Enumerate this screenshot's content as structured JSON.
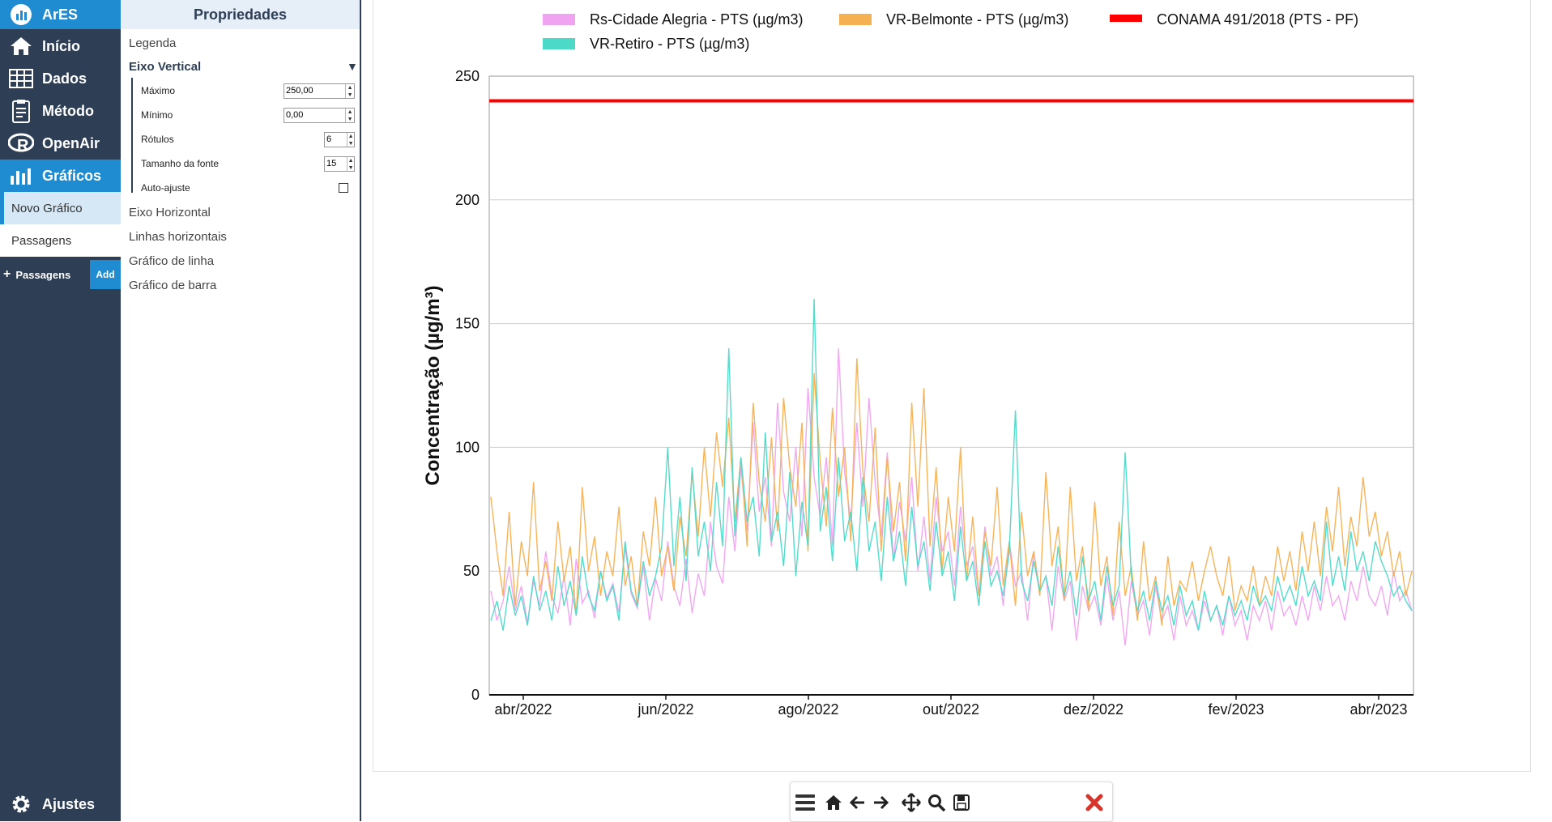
{
  "nav": {
    "brand": "ArES",
    "items": [
      {
        "label": "Início",
        "icon": "home-icon"
      },
      {
        "label": "Dados",
        "icon": "table-icon"
      },
      {
        "label": "Método",
        "icon": "clipboard-icon"
      },
      {
        "label": "OpenAir",
        "icon": "r-logo-icon"
      },
      {
        "label": "Gráficos",
        "icon": "bar-chart-icon"
      }
    ],
    "sub_items": [
      "Novo Gráfico",
      "Passagens"
    ],
    "add_label": "Passagens",
    "add_button": "Add",
    "settings": "Ajustes"
  },
  "props": {
    "title": "Propriedades",
    "legend": "Legenda",
    "vertical_axis": "Eixo Vertical",
    "fields": {
      "max_label": "Máximo",
      "max_value": "250,00",
      "min_label": "Mínimo",
      "min_value": "0,00",
      "labels_label": "Rótulos",
      "labels_value": "6",
      "font_label": "Tamanho da fonte",
      "font_value": "15",
      "autofit_label": "Auto-ajuste"
    },
    "sections": [
      "Eixo Horizontal",
      "Linhas horizontais",
      "Gráfico de linha",
      "Gráfico de barra"
    ]
  },
  "chart_data": {
    "type": "line",
    "ylabel": "Concentração (µg/m³)",
    "ylim": [
      0,
      250
    ],
    "yticks": [
      0,
      50,
      100,
      150,
      200,
      250
    ],
    "xticks": [
      "abr/2022",
      "jun/2022",
      "ago/2022",
      "out/2022",
      "dez/2022",
      "fev/2023",
      "abr/2023"
    ],
    "legend": [
      {
        "name": "Rs-Cidade Alegria - PTS (µg/m3)",
        "color": "#f0a3f0"
      },
      {
        "name": "VR-Belmonte - PTS (µg/m3)",
        "color": "#f5b052"
      },
      {
        "name": "CONAMA 491/2018 (PTS - PF)",
        "color": "#ff0000"
      },
      {
        "name": "VR-Retiro - PTS (µg/m3)",
        "color": "#4cd9c8"
      }
    ],
    "reference_line": {
      "name": "CONAMA 491/2018 (PTS - PF)",
      "value": 240,
      "color": "#ff0000"
    },
    "series": [
      {
        "name": "Rs-Cidade Alegria - PTS (µg/m3)",
        "color": "#f0a3f0",
        "values": [
          42,
          30,
          38,
          52,
          34,
          44,
          29,
          46,
          36,
          58,
          40,
          33,
          48,
          28,
          55,
          37,
          42,
          31,
          50,
          39,
          45,
          33,
          60,
          41,
          35,
          52,
          30,
          47,
          38,
          62,
          44,
          36,
          55,
          33,
          49,
          40,
          70,
          52,
          45,
          80,
          58,
          92,
          66,
          110,
          74,
          88,
          60,
          118,
          82,
          70,
          100,
          64,
          124,
          88,
          72,
          96,
          60,
          140,
          90,
          70,
          110,
          76,
          120,
          86,
          64,
          98,
          54,
          78,
          62,
          88,
          50,
          72,
          46,
          80,
          58,
          66,
          44,
          76,
          52,
          60,
          40,
          68,
          48,
          56,
          36,
          62,
          44,
          50,
          30,
          58,
          42,
          48,
          26,
          52,
          38,
          46,
          22,
          44,
          34,
          40,
          28,
          48,
          30,
          42,
          20,
          46,
          32,
          38,
          24,
          44,
          30,
          36,
          22,
          40,
          28,
          34,
          26,
          38,
          30,
          36,
          24,
          40,
          28,
          34,
          22,
          36,
          30,
          38,
          26,
          42,
          32,
          36,
          28,
          40,
          30,
          44,
          34,
          48,
          36,
          40,
          30,
          46,
          38,
          52,
          40,
          36,
          44,
          32,
          50,
          38,
          42,
          34
        ]
      },
      {
        "name": "VR-Belmonte - PTS (µg/m3)",
        "color": "#f5b052",
        "values": [
          80,
          58,
          40,
          74,
          36,
          62,
          48,
          86,
          42,
          54,
          38,
          70,
          46,
          60,
          32,
          84,
          50,
          64,
          40,
          58,
          48,
          76,
          44,
          56,
          36,
          66,
          52,
          80,
          48,
          60,
          42,
          72,
          56,
          90,
          64,
          100,
          72,
          106,
          84,
          112,
          70,
          96,
          60,
          118,
          86,
          70,
          104,
          66,
          120,
          92,
          76,
          110,
          58,
          130,
          94,
          68,
          116,
          80,
          100,
          62,
          136,
          90,
          70,
          108,
          58,
          96,
          66,
          86,
          54,
          118,
          76,
          124,
          60,
          92,
          50,
          80,
          58,
          100,
          46,
          72,
          40,
          66,
          52,
          84,
          44,
          62,
          36,
          74,
          48,
          58,
          40,
          90,
          52,
          68,
          38,
          84,
          46,
          60,
          34,
          78,
          44,
          56,
          32,
          70,
          40,
          52,
          30,
          62,
          38,
          48,
          28,
          56,
          36,
          46,
          42,
          54,
          38,
          50,
          60,
          48,
          40,
          56,
          34,
          44,
          38,
          52,
          36,
          48,
          40,
          60,
          46,
          58,
          42,
          66,
          50,
          70,
          48,
          76,
          58,
          84,
          52,
          72,
          60,
          88,
          64,
          74,
          56,
          66,
          48,
          58,
          40,
          50
        ]
      },
      {
        "name": "VR-Retiro - PTS (µg/m3)",
        "color": "#4cd9c8",
        "values": [
          30,
          38,
          26,
          44,
          32,
          40,
          28,
          48,
          34,
          42,
          30,
          52,
          36,
          46,
          32,
          56,
          40,
          34,
          50,
          38,
          44,
          30,
          62,
          42,
          36,
          54,
          40,
          48,
          60,
          100,
          52,
          80,
          46,
          92,
          56,
          70,
          50,
          86,
          60,
          140,
          64,
          96,
          70,
          80,
          56,
          106,
          62,
          74,
          52,
          90,
          48,
          78,
          60,
          160,
          66,
          84,
          54,
          96,
          62,
          74,
          50,
          88,
          58,
          70,
          46,
          80,
          54,
          66,
          44,
          76,
          52,
          62,
          42,
          70,
          48,
          58,
          38,
          68,
          46,
          54,
          36,
          62,
          44,
          50,
          40,
          58,
          115,
          46,
          38,
          54,
          42,
          48,
          36,
          60,
          40,
          50,
          32,
          56,
          38,
          46,
          30,
          52,
          36,
          44,
          98,
          48,
          34,
          42,
          30,
          46,
          34,
          40,
          28,
          44,
          32,
          38,
          26,
          42,
          30,
          36,
          28,
          40,
          32,
          38,
          30,
          44,
          36,
          40,
          34,
          48,
          38,
          44,
          36,
          52,
          40,
          46,
          38,
          70,
          44,
          56,
          42,
          66,
          50,
          58,
          46,
          62,
          54,
          48,
          40,
          44,
          38,
          34
        ]
      }
    ]
  },
  "toolbar": {
    "icons": [
      "menu-icon",
      "home-icon",
      "back-arrow-icon",
      "forward-arrow-icon",
      "pan-icon",
      "zoom-icon",
      "save-icon",
      "close-icon"
    ]
  }
}
